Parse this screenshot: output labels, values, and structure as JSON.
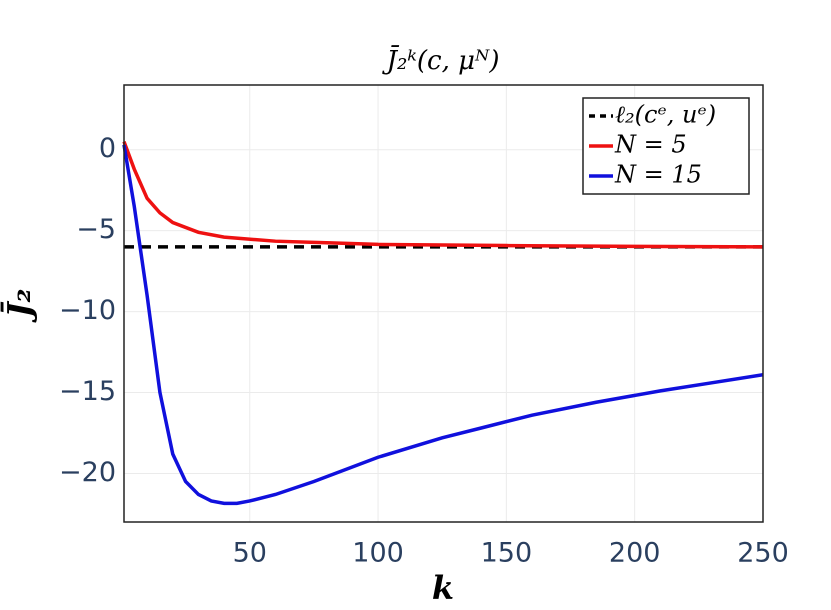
{
  "chart_data": {
    "type": "line",
    "title": "J̄₂ᵏ(c, μᴺ)",
    "x_label": "k",
    "y_label": "J̄₂",
    "xlim": [
      1,
      250
    ],
    "ylim": [
      -23,
      4
    ],
    "xticks": [
      50,
      100,
      150,
      200,
      250
    ],
    "yticks": [
      0,
      {
        "value": -5,
        "label": "−5"
      },
      {
        "value": -10,
        "label": "−10"
      },
      {
        "value": -15,
        "label": "−15"
      },
      {
        "value": -20,
        "label": "−20"
      }
    ],
    "grid": true,
    "legend": "top-right",
    "series": [
      {
        "name": "ℓ₂(cᵉ, uᵉ)",
        "color": "#000000",
        "dash": "dash",
        "x": [
          1,
          250
        ],
        "values": [
          -6,
          -6
        ]
      },
      {
        "name": "N = 5",
        "color": "#ee1111",
        "x": [
          1,
          5,
          10,
          15,
          20,
          30,
          40,
          60,
          80,
          100,
          150,
          200,
          250
        ],
        "values": [
          0.5,
          -1.2,
          -3,
          -3.9,
          -4.5,
          -5.1,
          -5.4,
          -5.65,
          -5.75,
          -5.85,
          -5.92,
          -5.97,
          -6
        ]
      },
      {
        "name": "N = 15",
        "color": "#1010dd",
        "x": [
          1,
          5,
          10,
          15,
          20,
          25,
          30,
          35,
          40,
          45,
          50,
          60,
          75,
          100,
          125,
          140,
          160,
          185,
          210,
          230,
          250
        ],
        "values": [
          0.3,
          -3.5,
          -9,
          -15,
          -18.8,
          -20.5,
          -21.3,
          -21.7,
          -21.85,
          -21.85,
          -21.7,
          -21.3,
          -20.5,
          -19,
          -17.8,
          -17.2,
          -16.4,
          -15.6,
          -14.9,
          -14.4,
          -13.9
        ]
      }
    ]
  }
}
